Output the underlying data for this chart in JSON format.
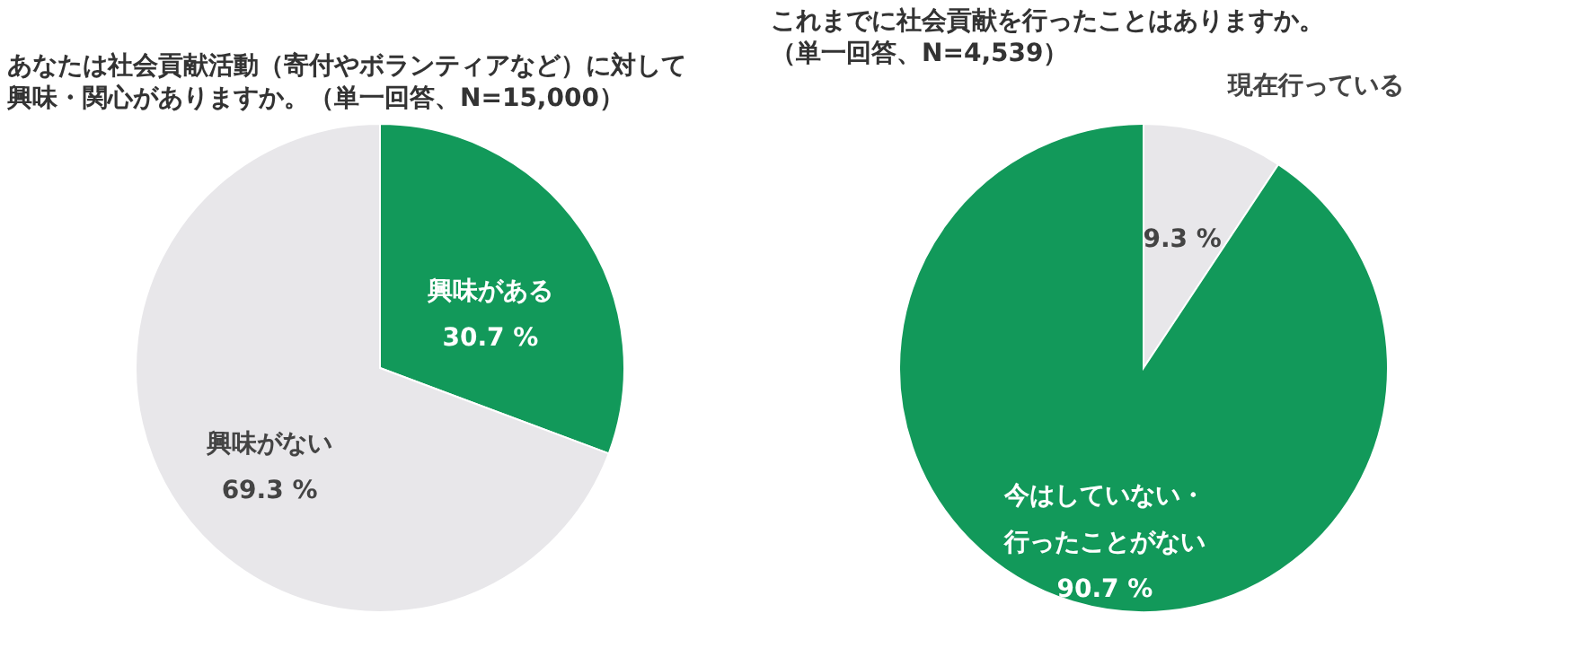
{
  "chart_data": [
    {
      "type": "pie",
      "title": "あなたは社会貢献活動（寄付やボランティアなど）に対して興味・関心がありますか。（単一回答、N=15,000）",
      "categories": [
        "興味がある",
        "興味がない"
      ],
      "values": [
        30.7,
        69.3
      ],
      "colors": [
        "#12995a",
        "#e8e7ea"
      ],
      "value_labels": [
        "30.7 %",
        "69.3 %"
      ],
      "legend": false
    },
    {
      "type": "pie",
      "title": "これまでに社会貢献を行ったことはありますか。（単一回答、N=4,539）",
      "categories": [
        "現在行っている",
        "今はしていない・行ったことがない"
      ],
      "values": [
        9.3,
        90.7
      ],
      "colors": [
        "#e8e7ea",
        "#12995a"
      ],
      "value_labels": [
        "9.3 %",
        "90.7 %"
      ],
      "legend": false
    }
  ]
}
